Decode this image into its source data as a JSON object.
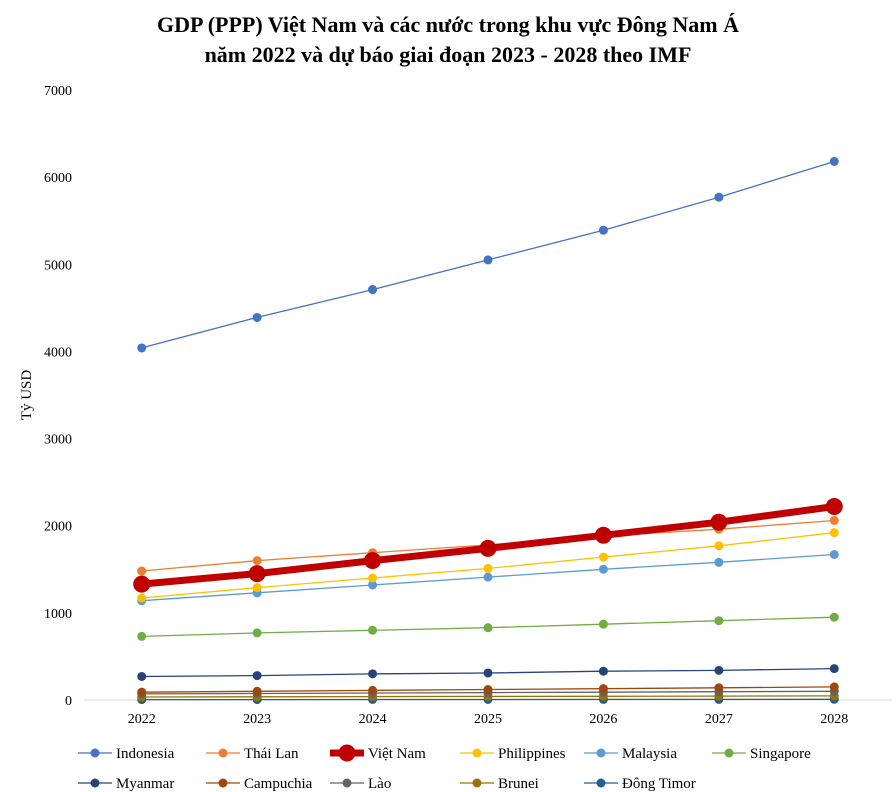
{
  "chart_data": {
    "type": "line",
    "title_line1": "GDP (PPP) Việt Nam và các nước trong khu vực Đông Nam Á",
    "title_line2": "năm 2022 và dự báo giai đoạn 2023 - 2028 theo IMF",
    "ylabel": "Tỷ USD",
    "xlabel": "",
    "ylim": [
      0,
      7000
    ],
    "yticks": [
      "0",
      "1000",
      "2000",
      "3000",
      "4000",
      "5000",
      "6000",
      "7000"
    ],
    "categories": [
      "2022",
      "2023",
      "2024",
      "2025",
      "2026",
      "2027",
      "2028"
    ],
    "grid": false,
    "legend_position": "bottom",
    "series": [
      {
        "name": "Indonesia",
        "color": "#4472C4",
        "values": [
          4040,
          4390,
          4710,
          5050,
          5390,
          5770,
          6180
        ]
      },
      {
        "name": "Thái Lan",
        "color": "#ED7D31",
        "values": [
          1480,
          1600,
          1690,
          1780,
          1880,
          1960,
          2060
        ]
      },
      {
        "name": "Việt Nam",
        "color": "#C00000",
        "values": [
          1330,
          1450,
          1600,
          1740,
          1890,
          2040,
          2220
        ],
        "highlight": true
      },
      {
        "name": "Philippines",
        "color": "#FFC000",
        "values": [
          1170,
          1290,
          1400,
          1510,
          1640,
          1770,
          1920
        ]
      },
      {
        "name": "Malaysia",
        "color": "#5B9BD5",
        "values": [
          1140,
          1230,
          1320,
          1410,
          1500,
          1580,
          1670
        ]
      },
      {
        "name": "Singapore",
        "color": "#70AD47",
        "values": [
          730,
          770,
          800,
          830,
          870,
          910,
          950
        ]
      },
      {
        "name": "Myanmar",
        "color": "#264478",
        "values": [
          270,
          280,
          300,
          310,
          330,
          340,
          360
        ]
      },
      {
        "name": "Campuchia",
        "color": "#9E480E",
        "values": [
          90,
          100,
          110,
          120,
          130,
          140,
          150
        ]
      },
      {
        "name": "Lào",
        "color": "#636363",
        "values": [
          70,
          75,
          80,
          85,
          90,
          95,
          100
        ]
      },
      {
        "name": "Brunei",
        "color": "#997300",
        "values": [
          35,
          37,
          39,
          41,
          43,
          45,
          47
        ]
      },
      {
        "name": "Đông Timor",
        "color": "#255E91",
        "values": [
          5,
          5,
          6,
          6,
          7,
          7,
          8
        ]
      }
    ]
  }
}
